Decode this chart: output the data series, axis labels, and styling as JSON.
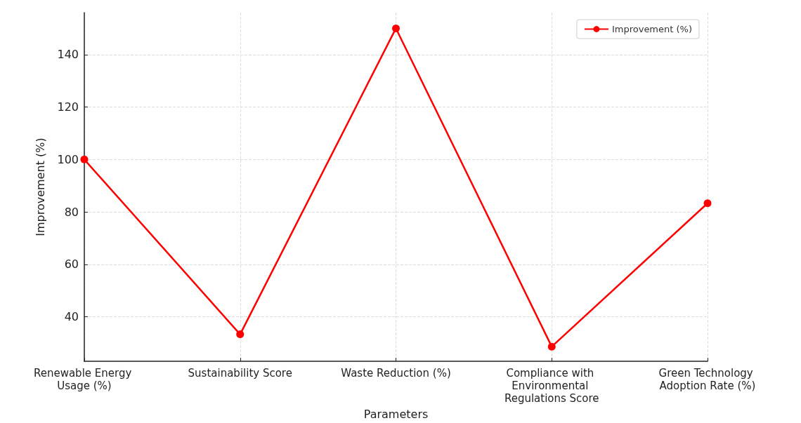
{
  "chart_data": {
    "type": "line",
    "xlabel": "Parameters",
    "ylabel": "Improvement (%)",
    "categories": [
      "Renewable Energy Usage (%)",
      "Sustainability Score",
      "Waste Reduction (%)",
      "Compliance with Environmental Regulations Score",
      "Green Technology Adoption Rate (%)"
    ],
    "series": [
      {
        "name": "Improvement (%)",
        "color": "#ff0000",
        "values": [
          100,
          33.3,
          150,
          28.6,
          83.3
        ]
      }
    ],
    "ylim": [
      23,
      156
    ],
    "yticks": [
      40,
      60,
      80,
      100,
      120,
      140
    ],
    "grid": true,
    "legend": "top right",
    "marker": "circle",
    "line_style": "solid"
  }
}
